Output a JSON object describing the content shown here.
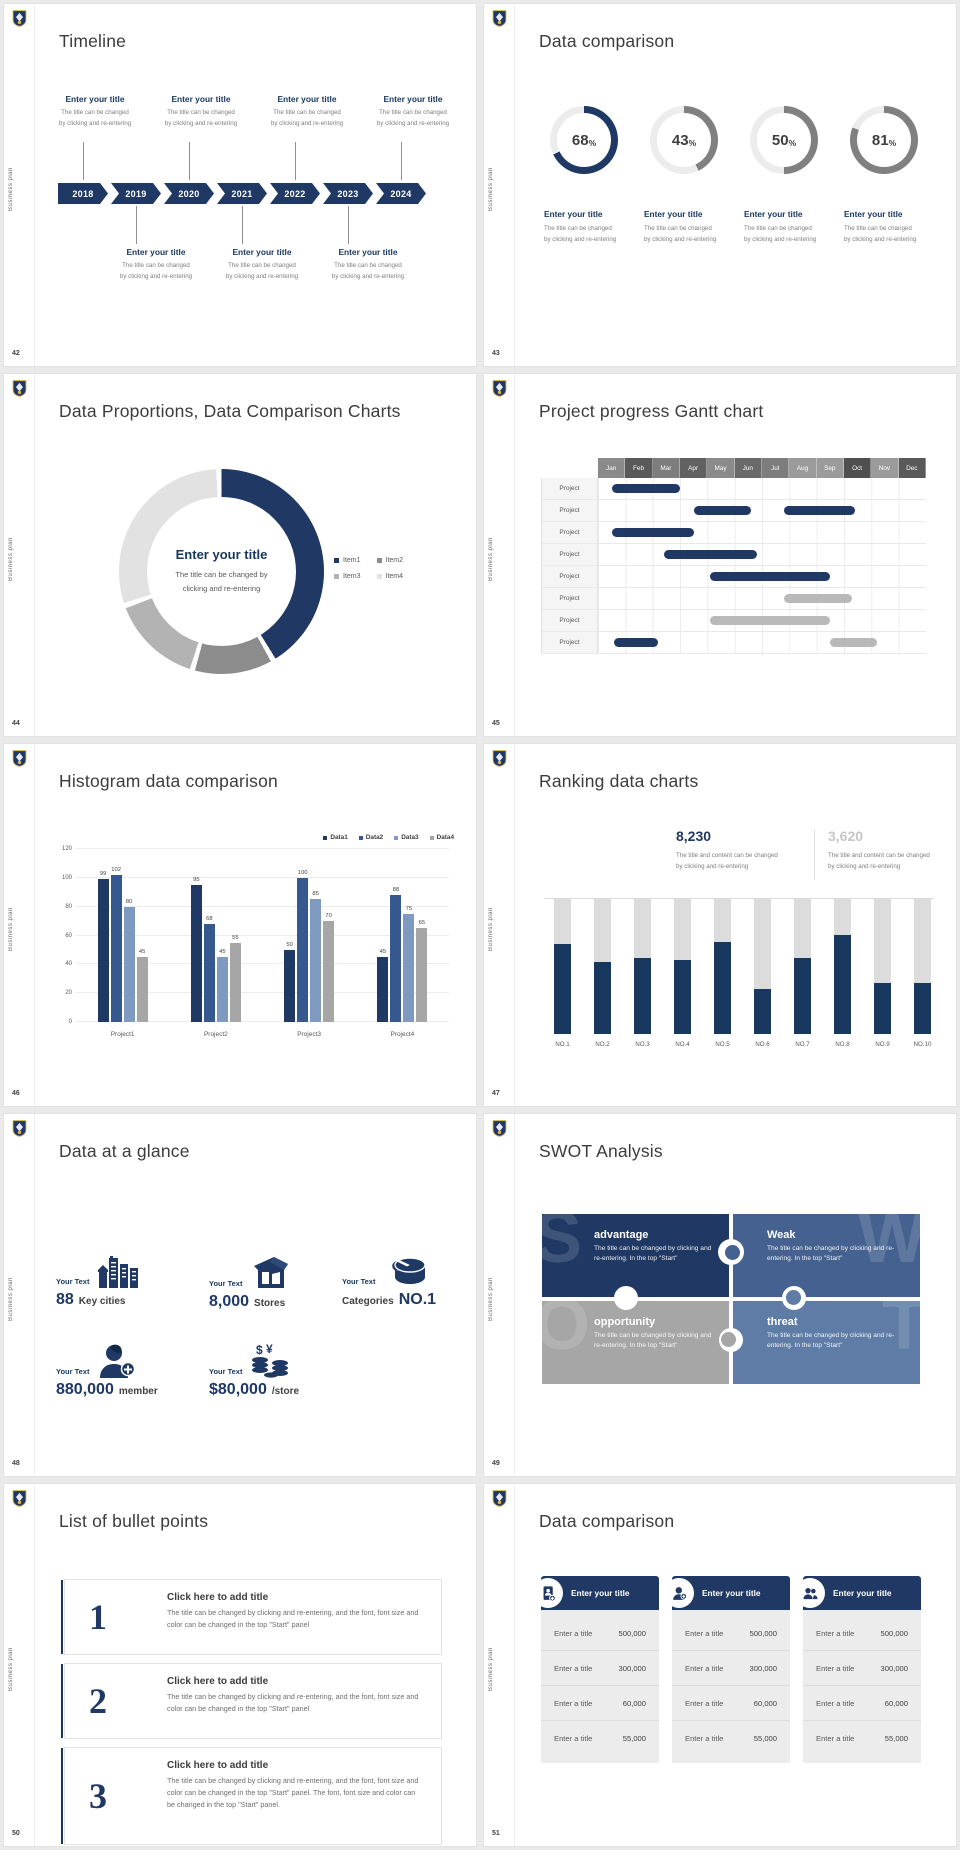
{
  "page": {
    "background": "#eaeaea"
  },
  "brand": {
    "sidebar_text": "Business plan"
  },
  "colors": {
    "navy": "#1f3864",
    "blue": "#35598e",
    "steel": "#7f9ac1",
    "gray": "#a6a6a6",
    "track": "#dcdcdc"
  },
  "slides": {
    "s42": {
      "num": "42",
      "title": "Timeline",
      "years": [
        "2018",
        "2019",
        "2020",
        "2021",
        "2022",
        "2023",
        "2024"
      ],
      "entry_title": "Enter your title",
      "cap1": "The title can be changed",
      "cap2": "by clicking and re-entering"
    },
    "s43": {
      "num": "43",
      "title": "Data comparison",
      "percent_sign": "%",
      "rings": [
        {
          "value": "68",
          "pct": 68,
          "color": "#1f3864"
        },
        {
          "value": "43",
          "pct": 43,
          "color": "#808080"
        },
        {
          "value": "50",
          "pct": 50,
          "color": "#808080"
        },
        {
          "value": "81",
          "pct": 81,
          "color": "#808080"
        }
      ],
      "entry_title": "Enter your title",
      "cap1": "The title can be changed",
      "cap2": "by clicking and re-entering"
    },
    "s44": {
      "num": "44",
      "title": "Data Proportions, Data Comparison Charts",
      "center_title": "Enter your title",
      "center_cap1": "The title can be changed by",
      "center_cap2": "clicking and re-entering",
      "segments": [
        {
          "label": "Item1",
          "value": 42,
          "color": "#1f3864"
        },
        {
          "label": "Item2",
          "value": 13,
          "color": "#8c8c8c"
        },
        {
          "label": "Item3",
          "value": 15,
          "color": "#b3b3b3"
        },
        {
          "label": "Item4",
          "value": 30,
          "color": "#e2e2e2"
        }
      ]
    },
    "s45": {
      "num": "45",
      "title": "Project progress Gantt chart",
      "row_label": "Project",
      "row_count": 8,
      "months": [
        {
          "label": "Jan",
          "color": "#8a8a8a"
        },
        {
          "label": "Feb",
          "color": "#595959"
        },
        {
          "label": "Mar",
          "color": "#7d7d7d"
        },
        {
          "label": "Apr",
          "color": "#616161"
        },
        {
          "label": "May",
          "color": "#8a8a8a"
        },
        {
          "label": "Jun",
          "color": "#6a6a6a"
        },
        {
          "label": "Jul",
          "color": "#7d7d7d"
        },
        {
          "label": "Aug",
          "color": "#9b9b9b"
        },
        {
          "label": "Sep",
          "color": "#9b9b9b"
        },
        {
          "label": "Oct",
          "color": "#4f4f4f"
        },
        {
          "label": "Nov",
          "color": "#9b9b9b"
        },
        {
          "label": "Dec",
          "color": "#595959"
        }
      ],
      "bars": [
        {
          "row": 0,
          "start": 0.5,
          "end": 3.0,
          "color": "#1f3864"
        },
        {
          "row": 1,
          "start": 3.5,
          "end": 5.6,
          "color": "#1f3864"
        },
        {
          "row": 1,
          "start": 6.8,
          "end": 9.4,
          "color": "#1f3864"
        },
        {
          "row": 2,
          "start": 0.5,
          "end": 3.5,
          "color": "#1f3864"
        },
        {
          "row": 3,
          "start": 2.4,
          "end": 5.8,
          "color": "#1f3864"
        },
        {
          "row": 4,
          "start": 4.1,
          "end": 8.5,
          "color": "#1f3864"
        },
        {
          "row": 5,
          "start": 6.8,
          "end": 9.3,
          "color": "#b9b9b9"
        },
        {
          "row": 6,
          "start": 4.1,
          "end": 8.5,
          "color": "#b9b9b9"
        },
        {
          "row": 7,
          "start": 0.6,
          "end": 2.2,
          "color": "#1f3864"
        },
        {
          "row": 7,
          "start": 8.5,
          "end": 10.2,
          "color": "#b9b9b9"
        }
      ]
    },
    "s46": {
      "num": "46",
      "title": "Histogram data comparison",
      "categories": [
        "Project1",
        "Project2",
        "Project3",
        "Project4"
      ],
      "ymax": 120,
      "yticks": [
        0,
        20,
        40,
        60,
        80,
        100,
        120
      ],
      "series": [
        {
          "name": "Data1",
          "color": "#1f3864",
          "values": [
            99,
            95,
            50,
            45
          ]
        },
        {
          "name": "Data2",
          "color": "#35598e",
          "values": [
            102,
            68,
            100,
            88
          ]
        },
        {
          "name": "Data3",
          "color": "#7f9ac1",
          "values": [
            80,
            45,
            85,
            75
          ]
        },
        {
          "name": "Data4",
          "color": "#a6a6a6",
          "values": [
            45,
            55,
            70,
            65
          ]
        }
      ]
    },
    "s47": {
      "num": "47",
      "title": "Ranking data charts",
      "stats": [
        {
          "value": "8,230",
          "color": "#1f3864",
          "cap1": "The title and content can be changed",
          "cap2": "by clicking and re-entering"
        },
        {
          "value": "3,620",
          "color": "#c6c6c6",
          "cap1": "The title and content can be changed",
          "cap2": "by clicking and re-entering"
        }
      ],
      "categories": [
        "NO.1",
        "NO.2",
        "NO.3",
        "NO.4",
        "NO.5",
        "NO.6",
        "NO.7",
        "NO.8",
        "NO.9",
        "NO.10"
      ],
      "values": [
        67,
        53,
        56,
        55,
        68,
        33,
        56,
        73,
        38,
        38
      ]
    },
    "s48": {
      "num": "48",
      "title": "Data at a glance",
      "items": [
        {
          "your": "Your Text",
          "value": "88",
          "label": "Key cities"
        },
        {
          "your": "Your Text",
          "value": "8,000",
          "label": "Stores"
        },
        {
          "your": "Your Text",
          "value": "NO.1",
          "label": "Categories"
        },
        {
          "your": "Your Text",
          "value": "880,000",
          "label": "member"
        },
        {
          "your": "Your Text",
          "value": "$80,000",
          "label": "/store"
        }
      ]
    },
    "s49": {
      "num": "49",
      "title": "SWOT Analysis",
      "pieces": [
        {
          "letter": "S",
          "title": "advantage",
          "body": "The title can be changed by clicking and re-entering. In the top \"Start\"",
          "color": "#1f3864"
        },
        {
          "letter": "W",
          "title": "Weak",
          "body": "The title can be changed by clicking and re-entering. In the top \"Start\"",
          "color": "#44618f"
        },
        {
          "letter": "O",
          "title": "opportunity",
          "body": "The title can be changed by clicking and re-entering. In the top \"Start\"",
          "color": "#a6a6a6"
        },
        {
          "letter": "T",
          "title": "threat",
          "body": "The title can be changed by clicking and re-entering. In the top \"Start\"",
          "color": "#5e7ca5"
        }
      ]
    },
    "s50": {
      "num": "50",
      "title": "List of bullet points",
      "items": [
        {
          "num": "1",
          "title": "Click here to add title",
          "body": "The title can be changed by clicking and re-entering, and the font, font size and color can be changed in the top \"Start\" panel"
        },
        {
          "num": "2",
          "title": "Click here to add title",
          "body": "The title can be changed by clicking and re-entering, and the font, font size and color can be changed in the top \"Start\" panel"
        },
        {
          "num": "3",
          "title": "Click here to add title",
          "body": "The title can be changed by clicking and re-entering, and the font, font size and color can be changed in the top \"Start\" panel. The font, font size and color can be changed in the top \"Start\" panel."
        }
      ]
    },
    "s51": {
      "num": "51",
      "title": "Data comparison",
      "cards": [
        {
          "title": "Enter your title",
          "rows": [
            {
              "label": "Enter a title",
              "value": "500,000"
            },
            {
              "label": "Enter a title",
              "value": "300,000"
            },
            {
              "label": "Enter a title",
              "value": "60,000"
            },
            {
              "label": "Enter a title",
              "value": "55,000"
            }
          ]
        },
        {
          "title": "Enter your title",
          "rows": [
            {
              "label": "Enter a title",
              "value": "500,000"
            },
            {
              "label": "Enter a title",
              "value": "300,000"
            },
            {
              "label": "Enter a title",
              "value": "60,000"
            },
            {
              "label": "Enter a title",
              "value": "55,000"
            }
          ]
        },
        {
          "title": "Enter your title",
          "rows": [
            {
              "label": "Enter a title",
              "value": "500,000"
            },
            {
              "label": "Enter a title",
              "value": "300,000"
            },
            {
              "label": "Enter a title",
              "value": "60,000"
            },
            {
              "label": "Enter a title",
              "value": "55,000"
            }
          ]
        }
      ]
    }
  },
  "chart_data": [
    {
      "type": "pie",
      "variant": "progress-rings",
      "slide": "43",
      "title": "Data comparison",
      "unit": "%",
      "values": [
        68,
        43,
        50,
        81
      ]
    },
    {
      "type": "pie",
      "variant": "donut",
      "slide": "44",
      "title": "Data Proportions, Data Comparison Charts",
      "labels": [
        "Item1",
        "Item2",
        "Item3",
        "Item4"
      ],
      "values": [
        42,
        13,
        15,
        30
      ],
      "center_text": "Enter your title",
      "legend_position": "right"
    },
    {
      "type": "table",
      "variant": "gantt",
      "slide": "45",
      "title": "Project progress Gantt chart",
      "x_labels": [
        "Jan",
        "Feb",
        "Mar",
        "Apr",
        "May",
        "Jun",
        "Jul",
        "Aug",
        "Sep",
        "Oct",
        "Nov",
        "Dec"
      ],
      "rows": [
        "Project",
        "Project",
        "Project",
        "Project",
        "Project",
        "Project",
        "Project",
        "Project"
      ],
      "bars_months": [
        [
          1,
          0.5,
          3.0
        ],
        [
          2,
          3.5,
          5.6
        ],
        [
          2,
          6.8,
          9.4
        ],
        [
          3,
          0.5,
          3.5
        ],
        [
          4,
          2.4,
          5.8
        ],
        [
          5,
          4.1,
          8.5
        ],
        [
          6,
          6.8,
          9.3
        ],
        [
          7,
          4.1,
          8.5
        ],
        [
          8,
          0.6,
          2.2
        ],
        [
          8,
          8.5,
          10.2
        ]
      ]
    },
    {
      "type": "bar",
      "slide": "46",
      "title": "Histogram data comparison",
      "categories": [
        "Project1",
        "Project2",
        "Project3",
        "Project4"
      ],
      "series": [
        {
          "name": "Data1",
          "values": [
            99,
            95,
            50,
            45
          ]
        },
        {
          "name": "Data2",
          "values": [
            102,
            68,
            100,
            88
          ]
        },
        {
          "name": "Data3",
          "values": [
            80,
            45,
            85,
            75
          ]
        },
        {
          "name": "Data4",
          "values": [
            45,
            55,
            70,
            65
          ]
        }
      ],
      "ylim": [
        0,
        120
      ],
      "grid": true,
      "legend_position": "top-right"
    },
    {
      "type": "bar",
      "variant": "progress-columns",
      "slide": "47",
      "title": "Ranking data charts",
      "categories": [
        "NO.1",
        "NO.2",
        "NO.3",
        "NO.4",
        "NO.5",
        "NO.6",
        "NO.7",
        "NO.8",
        "NO.9",
        "NO.10"
      ],
      "values_pct": [
        67,
        53,
        56,
        55,
        68,
        33,
        56,
        73,
        38,
        38
      ],
      "annotations": [
        "8,230",
        "3,620"
      ]
    },
    {
      "type": "table",
      "slide": "51",
      "title": "Data comparison",
      "tables": 3,
      "rows_per_table": [
        [
          "Enter a title",
          "500,000"
        ],
        [
          "Enter a title",
          "300,000"
        ],
        [
          "Enter a title",
          "60,000"
        ],
        [
          "Enter a title",
          "55,000"
        ]
      ]
    }
  ]
}
